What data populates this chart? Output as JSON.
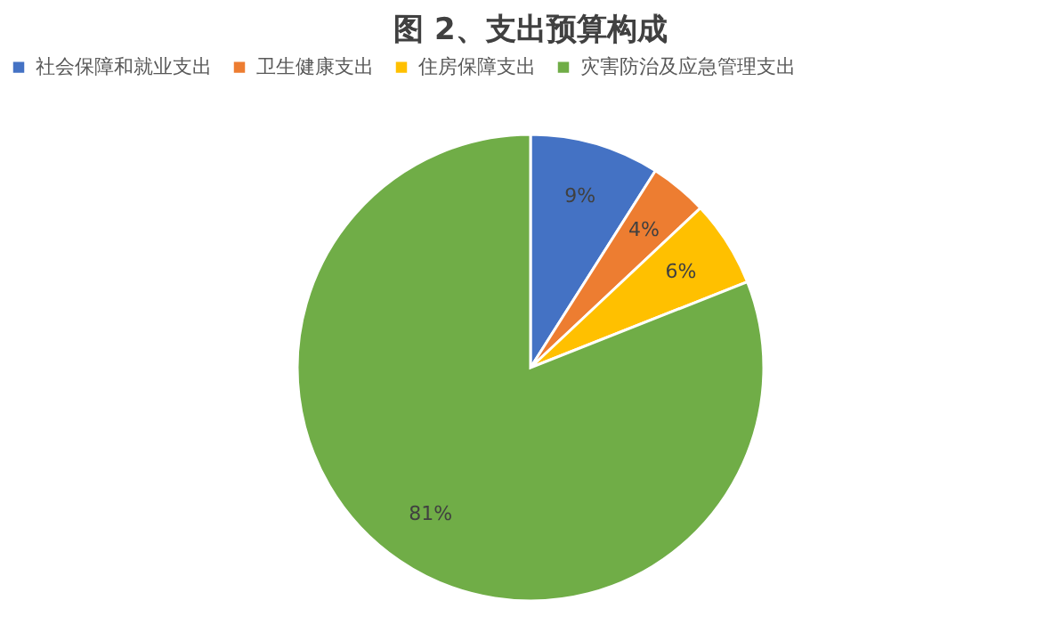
{
  "chart_data": {
    "type": "pie",
    "title": "图 2、支出预算构成",
    "categories": [
      "社会保障和就业支出",
      "卫生健康支出",
      "住房保障支出",
      "灾害防治及应急管理支出"
    ],
    "values": [
      9,
      4,
      6,
      81
    ],
    "colors": [
      "#4472c4",
      "#ed7d31",
      "#ffc000",
      "#70ad47"
    ],
    "value_labels": [
      "9%",
      "4%",
      "6%",
      "81%"
    ],
    "legend": "top"
  }
}
